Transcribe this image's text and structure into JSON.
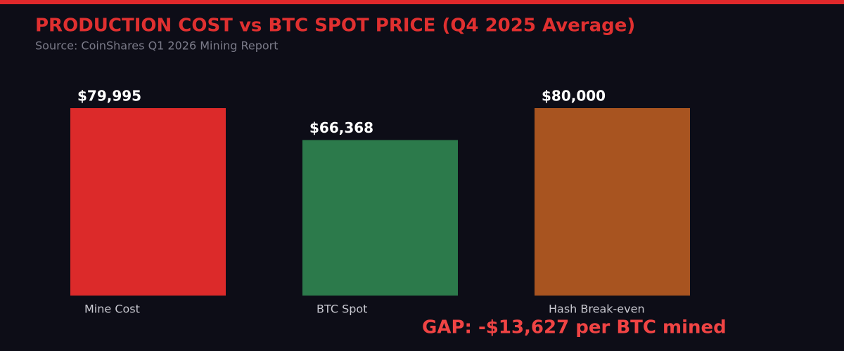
{
  "chart_data": {
    "type": "bar",
    "title": "PRODUCTION COST vs BTC SPOT PRICE (Q4 2025 Average)",
    "subtitle": "Source: CoinShares Q1 2026 Mining Report",
    "categories": [
      "Mine Cost",
      "BTC Spot",
      "Hash Break-even"
    ],
    "values": [
      79995,
      66368,
      80000
    ],
    "value_labels": [
      "$79,995",
      "$66,368",
      "$80,000"
    ],
    "colors": [
      "#dc2a2a",
      "#2c7a4b",
      "#a85420"
    ],
    "annotation": "GAP: -$13,627 per BTC mined"
  }
}
